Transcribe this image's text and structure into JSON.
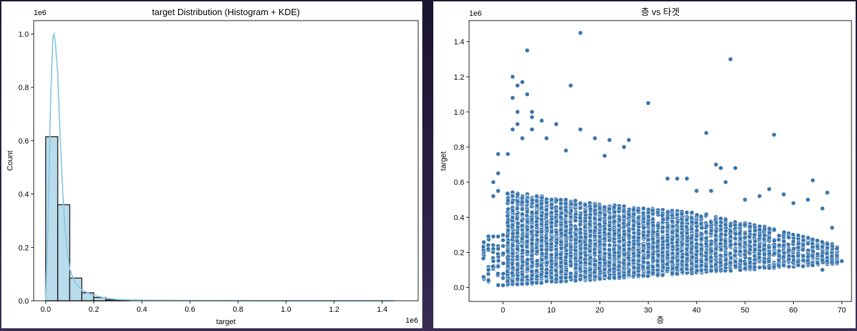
{
  "chart_data": [
    {
      "type": "bar",
      "title": "target Distribution (Histogram + KDE)",
      "xlabel": "target",
      "ylabel": "Count",
      "x_offset_label": "1e6",
      "y_offset_label": "1e6",
      "xlim": [
        -0.05,
        1.55
      ],
      "ylim": [
        0,
        1.05
      ],
      "xticks": [
        "0.0",
        "0.2",
        "0.4",
        "0.6",
        "0.8",
        "1.0",
        "1.2",
        "1.4"
      ],
      "yticks": [
        "0.0",
        "0.2",
        "0.4",
        "0.6",
        "0.8",
        "1.0"
      ],
      "bin_edges": [
        0.0,
        0.05,
        0.1,
        0.15,
        0.2,
        0.25,
        0.3,
        0.35
      ],
      "values": [
        0.615,
        0.36,
        0.085,
        0.03,
        0.012,
        0.004,
        0.002
      ],
      "kde": {
        "x": [
          0.0,
          0.01,
          0.02,
          0.03,
          0.035,
          0.04,
          0.05,
          0.06,
          0.07,
          0.08,
          0.09,
          0.1,
          0.12,
          0.15,
          0.2,
          0.25,
          0.3,
          0.4,
          0.6,
          1.0,
          1.45
        ],
        "y": [
          0.0,
          0.3,
          0.75,
          0.99,
          1.0,
          0.97,
          0.85,
          0.62,
          0.42,
          0.28,
          0.18,
          0.12,
          0.07,
          0.04,
          0.02,
          0.01,
          0.005,
          0.002,
          0.001,
          0.0,
          0.0
        ]
      },
      "colors": {
        "bar": "#b9dcec",
        "edge": "#222222",
        "kde": "#8fc8e2"
      }
    },
    {
      "type": "scatter",
      "title": "층 vs 타겟",
      "xlabel": "층",
      "ylabel": "target",
      "y_offset_label": "1e6",
      "xlim": [
        -7,
        72
      ],
      "ylim": [
        -0.08,
        1.52
      ],
      "xticks": [
        "0",
        "10",
        "20",
        "30",
        "40",
        "50",
        "60",
        "70"
      ],
      "yticks": [
        "0.0",
        "0.2",
        "0.4",
        "0.6",
        "0.8",
        "1.0",
        "1.2",
        "1.4"
      ],
      "points": [
        [
          16,
          1.45
        ],
        [
          5,
          1.35
        ],
        [
          47,
          1.3
        ],
        [
          2,
          1.2
        ],
        [
          3,
          1.15
        ],
        [
          4,
          1.17
        ],
        [
          5,
          1.1
        ],
        [
          2,
          1.08
        ],
        [
          14,
          1.15
        ],
        [
          30,
          1.05
        ],
        [
          3,
          1.0
        ],
        [
          6,
          1.0
        ],
        [
          6,
          0.97
        ],
        [
          11,
          0.93
        ],
        [
          3,
          0.93
        ],
        [
          8,
          0.95
        ],
        [
          2,
          0.9
        ],
        [
          6,
          0.9
        ],
        [
          16,
          0.9
        ],
        [
          42,
          0.88
        ],
        [
          56,
          0.87
        ],
        [
          4,
          0.85
        ],
        [
          9,
          0.85
        ],
        [
          19,
          0.85
        ],
        [
          22,
          0.84
        ],
        [
          26,
          0.84
        ],
        [
          13,
          0.78
        ],
        [
          25,
          0.8
        ],
        [
          44,
          0.7
        ],
        [
          48,
          0.68
        ],
        [
          45,
          0.68
        ],
        [
          21,
          0.75
        ],
        [
          64,
          0.61
        ],
        [
          1,
          0.76
        ],
        [
          -1,
          0.76
        ],
        [
          -1,
          0.65
        ],
        [
          -2,
          0.6
        ],
        [
          -1,
          0.55
        ],
        [
          -2,
          0.52
        ],
        [
          -2,
          0.29
        ],
        [
          -1,
          0.29
        ],
        [
          -2,
          0.22
        ],
        [
          -1,
          0.22
        ],
        [
          -2,
          0.15
        ],
        [
          -1,
          0.12
        ],
        [
          -3,
          0.1
        ],
        [
          -4,
          0.06
        ],
        [
          -3,
          0.04
        ],
        [
          67,
          0.54
        ],
        [
          63,
          0.5
        ],
        [
          60,
          0.48
        ],
        [
          58,
          0.53
        ],
        [
          66,
          0.45
        ],
        [
          68,
          0.34
        ],
        [
          69,
          0.18
        ],
        [
          70,
          0.15
        ],
        [
          66,
          0.1
        ],
        [
          62,
          0.12
        ],
        [
          55,
          0.56
        ],
        [
          53,
          0.52
        ],
        [
          50,
          0.5
        ],
        [
          38,
          0.62
        ],
        [
          34,
          0.62
        ],
        [
          36,
          0.62
        ],
        [
          40,
          0.55
        ],
        [
          46,
          0.6
        ],
        [
          43,
          0.55
        ],
        [
          30,
          1.05
        ]
      ],
      "colors": {
        "point": "#3a76ae",
        "edge": "#ffffff"
      }
    }
  ]
}
